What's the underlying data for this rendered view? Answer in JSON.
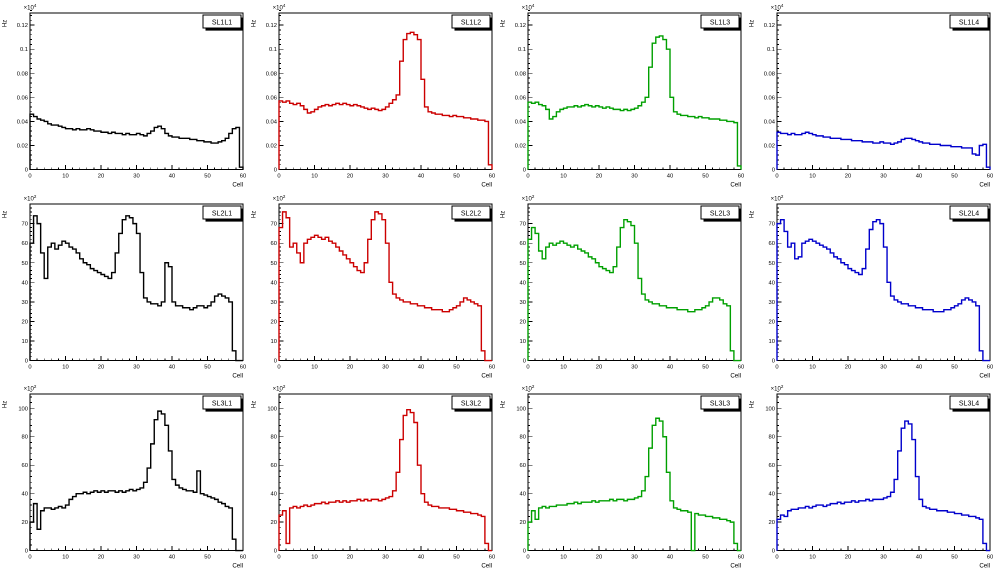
{
  "page": {
    "background": "#ffffff"
  },
  "chart_data": {
    "type": "step-histogram-grid",
    "grid": {
      "rows": 3,
      "cols": 4
    },
    "x_axis": {
      "label": "Cell",
      "min": 0,
      "max": 60,
      "major": 10,
      "minor": 2,
      "tick_labels": [
        "0",
        "10",
        "20",
        "30",
        "40",
        "50",
        "60"
      ]
    },
    "row_axes": [
      {
        "ylabel": "Hz",
        "exponent": "×10^4",
        "ymin": 0,
        "ymax": 0.13,
        "y_minor": 0.004,
        "yticks": [
          0,
          0.02,
          0.04,
          0.06,
          0.08,
          0.1,
          0.12
        ],
        "ytick_labels": [
          "0",
          "0.02",
          "0.04",
          "0.06",
          "0.08",
          "0.1",
          "0.12"
        ]
      },
      {
        "ylabel": "Hz",
        "exponent": "×10^2",
        "ymin": 0,
        "ymax": 80,
        "y_minor": 2,
        "yticks": [
          0,
          10,
          20,
          30,
          40,
          50,
          60,
          70
        ],
        "ytick_labels": [
          "0",
          "10",
          "20",
          "30",
          "40",
          "50",
          "60",
          "70"
        ]
      },
      {
        "ylabel": "Hz",
        "exponent": "×10^2",
        "ymin": 0,
        "ymax": 110,
        "y_minor": 4,
        "yticks": [
          0,
          20,
          40,
          60,
          80,
          100
        ],
        "ytick_labels": [
          "0",
          "20",
          "40",
          "60",
          "80",
          "100"
        ]
      }
    ],
    "panels": [
      {
        "title": "SL1L1",
        "color": "#000000",
        "row": 0,
        "values": [
          0.046,
          0.044,
          0.042,
          0.041,
          0.04,
          0.038,
          0.037,
          0.037,
          0.036,
          0.035,
          0.034,
          0.034,
          0.033,
          0.034,
          0.033,
          0.033,
          0.034,
          0.033,
          0.032,
          0.032,
          0.031,
          0.031,
          0.03,
          0.031,
          0.03,
          0.03,
          0.029,
          0.03,
          0.029,
          0.029,
          0.03,
          0.029,
          0.028,
          0.03,
          0.032,
          0.035,
          0.036,
          0.034,
          0.03,
          0.028,
          0.027,
          0.027,
          0.026,
          0.026,
          0.026,
          0.025,
          0.025,
          0.024,
          0.024,
          0.023,
          0.023,
          0.022,
          0.022,
          0.023,
          0.024,
          0.026,
          0.03,
          0.034,
          0.035,
          0.002
        ]
      },
      {
        "title": "SL1L2",
        "color": "#cc0000",
        "row": 0,
        "values": [
          0.057,
          0.056,
          0.057,
          0.055,
          0.054,
          0.055,
          0.053,
          0.05,
          0.047,
          0.048,
          0.05,
          0.052,
          0.053,
          0.054,
          0.053,
          0.054,
          0.055,
          0.054,
          0.055,
          0.054,
          0.053,
          0.054,
          0.053,
          0.052,
          0.051,
          0.05,
          0.051,
          0.05,
          0.049,
          0.05,
          0.052,
          0.055,
          0.058,
          0.062,
          0.09,
          0.108,
          0.113,
          0.114,
          0.112,
          0.108,
          0.075,
          0.052,
          0.048,
          0.047,
          0.046,
          0.046,
          0.045,
          0.045,
          0.044,
          0.045,
          0.044,
          0.044,
          0.043,
          0.043,
          0.042,
          0.042,
          0.041,
          0.041,
          0.04,
          0.004
        ]
      },
      {
        "title": "SL1L3",
        "color": "#00a000",
        "row": 0,
        "values": [
          0.056,
          0.055,
          0.056,
          0.054,
          0.053,
          0.05,
          0.042,
          0.044,
          0.048,
          0.05,
          0.051,
          0.052,
          0.052,
          0.053,
          0.052,
          0.053,
          0.054,
          0.053,
          0.052,
          0.053,
          0.052,
          0.051,
          0.052,
          0.051,
          0.05,
          0.05,
          0.049,
          0.05,
          0.049,
          0.05,
          0.051,
          0.053,
          0.056,
          0.06,
          0.085,
          0.105,
          0.11,
          0.111,
          0.108,
          0.1,
          0.06,
          0.048,
          0.046,
          0.045,
          0.045,
          0.044,
          0.044,
          0.043,
          0.044,
          0.043,
          0.043,
          0.042,
          0.042,
          0.042,
          0.041,
          0.041,
          0.04,
          0.04,
          0.039,
          0.003
        ]
      },
      {
        "title": "SL1L4",
        "color": "#0000cc",
        "row": 0,
        "values": [
          0.031,
          0.03,
          0.03,
          0.029,
          0.03,
          0.029,
          0.029,
          0.03,
          0.031,
          0.03,
          0.029,
          0.028,
          0.028,
          0.027,
          0.027,
          0.026,
          0.026,
          0.026,
          0.025,
          0.025,
          0.025,
          0.024,
          0.024,
          0.024,
          0.023,
          0.023,
          0.023,
          0.022,
          0.022,
          0.023,
          0.022,
          0.022,
          0.021,
          0.022,
          0.023,
          0.025,
          0.026,
          0.026,
          0.025,
          0.024,
          0.023,
          0.022,
          0.022,
          0.021,
          0.021,
          0.021,
          0.02,
          0.02,
          0.02,
          0.019,
          0.019,
          0.019,
          0.018,
          0.018,
          0.018,
          0.013,
          0.012,
          0.02,
          0.021,
          0.002
        ]
      },
      {
        "title": "SL2L1",
        "color": "#000000",
        "row": 1,
        "values": [
          60,
          74,
          70,
          55,
          42,
          58,
          60,
          57,
          59,
          61,
          60,
          58,
          57,
          55,
          52,
          50,
          49,
          47,
          46,
          45,
          44,
          43,
          42,
          45,
          55,
          65,
          72,
          74,
          73,
          70,
          65,
          45,
          32,
          30,
          29,
          29,
          28,
          30,
          50,
          48,
          30,
          28,
          28,
          27,
          27,
          26,
          27,
          28,
          28,
          27,
          28,
          30,
          33,
          34,
          33,
          32,
          30,
          5,
          0,
          0
        ]
      },
      {
        "title": "SL2L2",
        "color": "#cc0000",
        "row": 1,
        "values": [
          68,
          76,
          73,
          58,
          60,
          55,
          50,
          60,
          62,
          63,
          64,
          63,
          62,
          63,
          61,
          60,
          58,
          56,
          54,
          52,
          50,
          48,
          46,
          45,
          50,
          62,
          72,
          76,
          75,
          72,
          60,
          40,
          34,
          32,
          31,
          30,
          30,
          29,
          29,
          28,
          28,
          27,
          27,
          26,
          26,
          26,
          25,
          25,
          26,
          27,
          28,
          30,
          32,
          31,
          30,
          29,
          28,
          5,
          0,
          0
        ]
      },
      {
        "title": "SL2L3",
        "color": "#00a000",
        "row": 1,
        "values": [
          62,
          68,
          65,
          56,
          52,
          58,
          60,
          59,
          60,
          61,
          60,
          59,
          58,
          59,
          57,
          56,
          55,
          53,
          52,
          50,
          48,
          47,
          46,
          45,
          48,
          58,
          68,
          72,
          71,
          69,
          60,
          42,
          34,
          31,
          30,
          29,
          29,
          28,
          28,
          27,
          27,
          27,
          26,
          26,
          26,
          25,
          25,
          26,
          26,
          27,
          28,
          30,
          32,
          32,
          31,
          29,
          28,
          5,
          0,
          0
        ]
      },
      {
        "title": "SL2L4",
        "color": "#0000cc",
        "row": 1,
        "values": [
          70,
          72,
          66,
          58,
          60,
          52,
          53,
          60,
          61,
          62,
          61,
          60,
          59,
          58,
          57,
          55,
          53,
          52,
          50,
          49,
          47,
          46,
          45,
          44,
          47,
          57,
          67,
          71,
          72,
          70,
          58,
          40,
          33,
          31,
          30,
          29,
          29,
          28,
          28,
          27,
          27,
          26,
          26,
          26,
          25,
          25,
          25,
          26,
          26,
          27,
          28,
          29,
          31,
          32,
          31,
          30,
          28,
          5,
          0,
          0
        ]
      },
      {
        "title": "SL3L1",
        "color": "#000000",
        "row": 2,
        "values": [
          20,
          33,
          15,
          28,
          30,
          30,
          29,
          30,
          31,
          30,
          32,
          36,
          38,
          40,
          40,
          41,
          40,
          41,
          42,
          41,
          42,
          41,
          42,
          42,
          41,
          42,
          41,
          42,
          43,
          42,
          43,
          44,
          48,
          58,
          75,
          92,
          98,
          96,
          88,
          70,
          50,
          46,
          44,
          43,
          42,
          42,
          41,
          56,
          40,
          39,
          38,
          37,
          36,
          34,
          33,
          31,
          30,
          8,
          0,
          0
        ]
      },
      {
        "title": "SL3L2",
        "color": "#cc0000",
        "row": 2,
        "values": [
          25,
          28,
          5,
          30,
          31,
          30,
          31,
          32,
          31,
          32,
          33,
          33,
          34,
          33,
          34,
          34,
          35,
          34,
          35,
          34,
          35,
          35,
          36,
          35,
          36,
          35,
          36,
          36,
          35,
          36,
          37,
          38,
          42,
          55,
          78,
          95,
          99,
          97,
          90,
          60,
          40,
          34,
          32,
          31,
          31,
          30,
          30,
          30,
          29,
          29,
          28,
          28,
          27,
          27,
          26,
          26,
          25,
          24,
          5,
          0
        ]
      },
      {
        "title": "SL3L3",
        "color": "#00a000",
        "row": 2,
        "values": [
          20,
          28,
          22,
          30,
          31,
          30,
          31,
          31,
          32,
          32,
          32,
          33,
          33,
          34,
          33,
          34,
          34,
          34,
          35,
          34,
          35,
          35,
          35,
          36,
          35,
          36,
          36,
          35,
          36,
          36,
          37,
          38,
          42,
          52,
          72,
          88,
          93,
          91,
          80,
          55,
          35,
          30,
          29,
          28,
          28,
          27,
          0,
          26,
          25,
          25,
          24,
          24,
          23,
          23,
          22,
          22,
          21,
          20,
          5,
          0
        ]
      },
      {
        "title": "SL3L4",
        "color": "#0000cc",
        "row": 2,
        "values": [
          22,
          25,
          24,
          28,
          29,
          29,
          30,
          30,
          31,
          30,
          31,
          32,
          32,
          31,
          32,
          33,
          33,
          34,
          33,
          34,
          34,
          35,
          34,
          35,
          35,
          36,
          35,
          36,
          36,
          36,
          37,
          38,
          41,
          50,
          70,
          86,
          91,
          89,
          78,
          52,
          36,
          31,
          30,
          29,
          29,
          28,
          28,
          28,
          27,
          27,
          26,
          26,
          25,
          25,
          24,
          24,
          23,
          22,
          5,
          0
        ]
      }
    ]
  }
}
